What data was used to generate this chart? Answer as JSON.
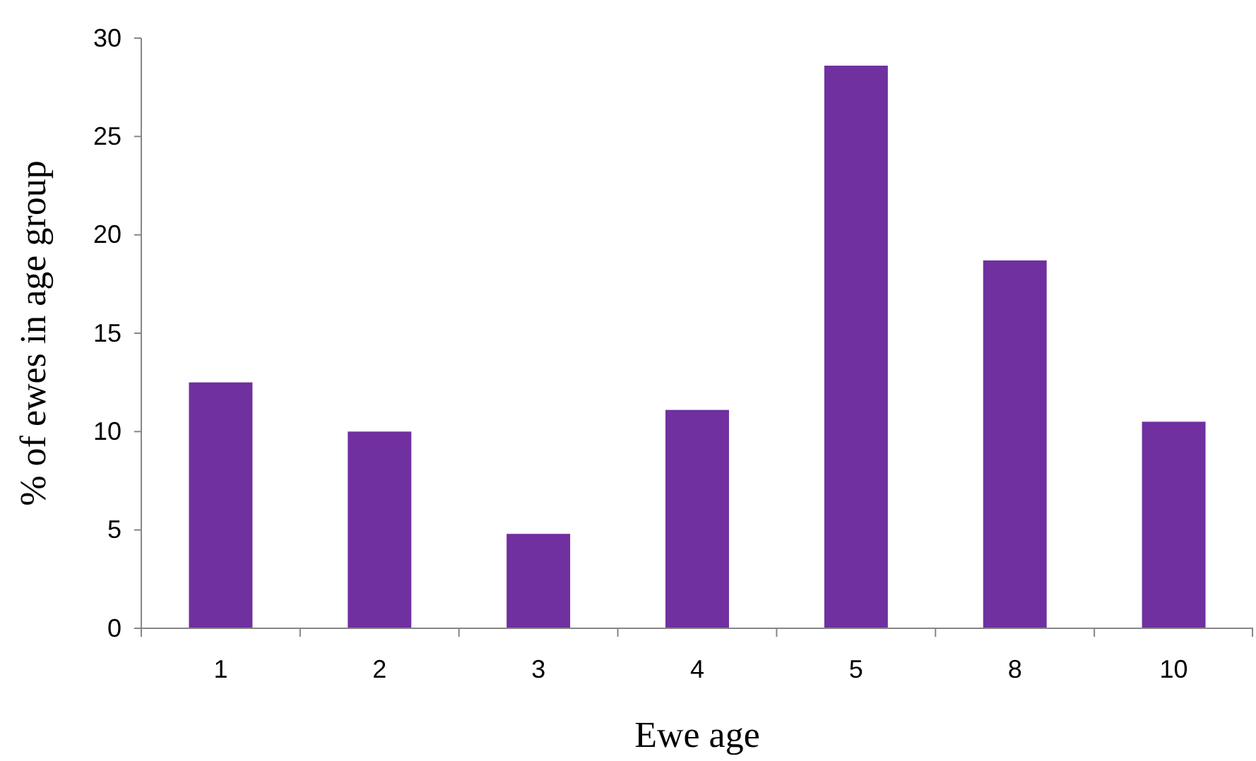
{
  "chart_data": {
    "type": "bar",
    "xlabel": "Ewe age",
    "ylabel": "% of ewes in age group",
    "categories": [
      "1",
      "2",
      "3",
      "4",
      "5",
      "8",
      "10"
    ],
    "values": [
      12.5,
      10,
      4.8,
      11.1,
      28.6,
      18.7,
      10.5
    ],
    "color": "#7030a0",
    "ylim": [
      0,
      30
    ],
    "yticks": [
      0,
      5,
      10,
      15,
      20,
      25,
      30
    ],
    "grid": false,
    "legend": false
  }
}
